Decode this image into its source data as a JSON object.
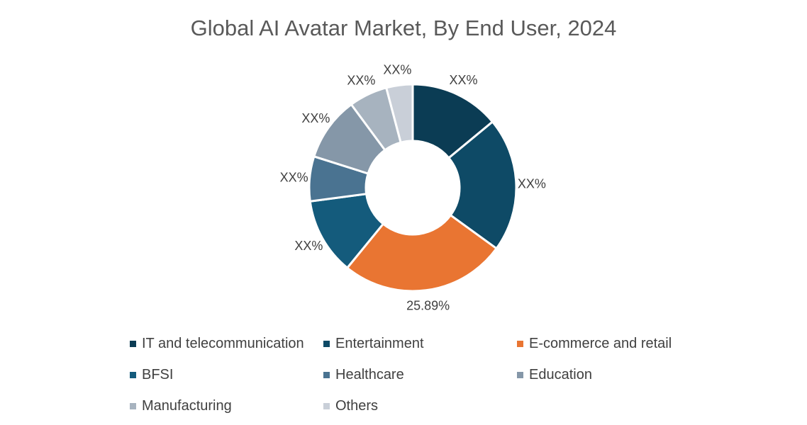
{
  "chart_data": {
    "type": "pie",
    "donut": true,
    "title": "Global AI Avatar Market, By End User, 2024",
    "categories": [
      "IT and telecommunication",
      "Entertainment",
      "E-commerce and retail",
      "BFSI",
      "Healthcare",
      "Education",
      "Manufacturing",
      "Others"
    ],
    "values": [
      14,
      21,
      25.89,
      12,
      7,
      10,
      6,
      4.11
    ],
    "data_labels": [
      "XX%",
      "XX%",
      "25.89%",
      "XX%",
      "XX%",
      "XX%",
      "XX%",
      "XX%"
    ],
    "colors": [
      "#0b3c54",
      "#0e4a66",
      "#e97532",
      "#145b7c",
      "#4a7391",
      "#8597a8",
      "#a7b3bf",
      "#c9cfd8"
    ],
    "legend_position": "bottom"
  }
}
